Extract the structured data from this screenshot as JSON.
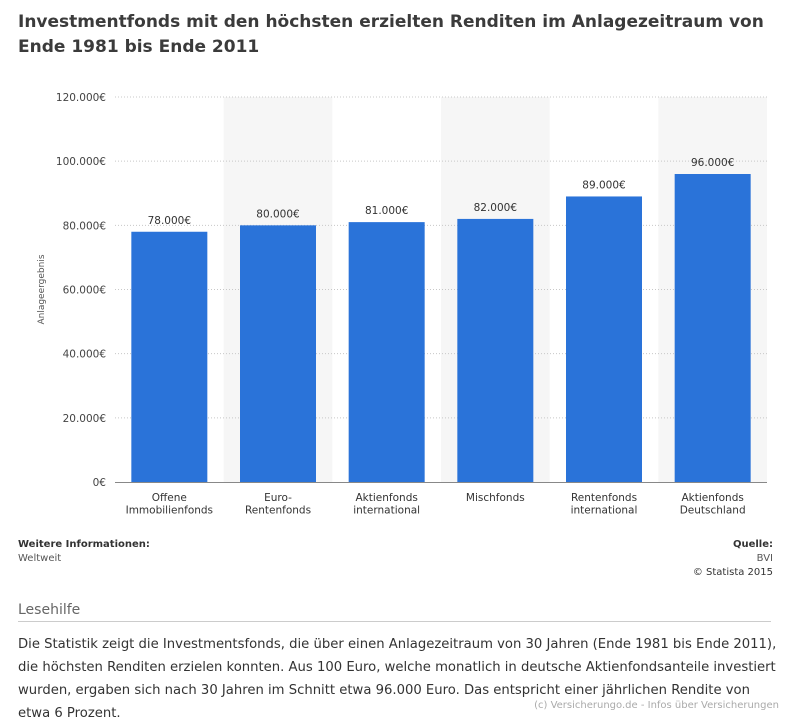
{
  "title": "Investmentfonds mit den höchsten erzielten Renditen im Anlagezeitraum von Ende 1981 bis Ende 2011",
  "chart_data": {
    "type": "bar",
    "categories": [
      [
        "Offene",
        "Immobilienfonds"
      ],
      [
        "Euro-",
        "Rentenfonds"
      ],
      [
        "Aktienfonds",
        "international"
      ],
      [
        "Mischfonds"
      ],
      [
        "Rentenfonds",
        "international"
      ],
      [
        "Aktienfonds",
        "Deutschland"
      ]
    ],
    "values": [
      78000,
      80000,
      81000,
      82000,
      89000,
      96000
    ],
    "value_labels": [
      "78.000€",
      "80.000€",
      "81.000€",
      "82.000€",
      "89.000€",
      "96.000€"
    ],
    "ylabel": "Anlageergebnis",
    "ylim": [
      0,
      120000
    ],
    "yticks": [
      0,
      20000,
      40000,
      60000,
      80000,
      100000,
      120000
    ],
    "ytick_labels": [
      "0€",
      "20.000€",
      "40.000€",
      "60.000€",
      "80.000€",
      "100.000€",
      "120.000€"
    ],
    "grid": true,
    "bar_color": "#2a73d9"
  },
  "info": {
    "left_heading": "Weitere Informationen:",
    "left_text": "Weltweit",
    "right_heading": "Quelle:",
    "source": "BVI",
    "copyright": "© Statista 2015"
  },
  "lesehilfe": {
    "heading": "Lesehilfe",
    "text": "Die Statistik zeigt die Investmentsfonds, die über einen Anlagezeitraum von 30 Jahren (Ende 1981 bis Ende 2011), die höchsten Renditen erzielen konnten. Aus 100 Euro, welche monatlich in deutsche Aktienfondsanteile investiert wurden, ergaben sich nach 30 Jahren im Schnitt etwa 96.000 Euro. Das entspricht einer jährlichen Rendite von etwa 6 Prozent."
  },
  "footer": "(c) Versicherungo.de - Infos über Versicherungen"
}
